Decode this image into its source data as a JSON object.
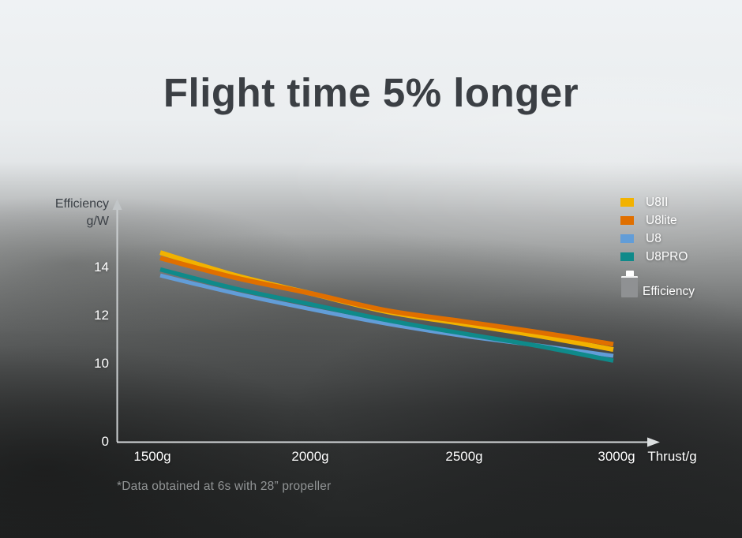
{
  "title": "Flight time 5% longer",
  "y_axis_title": [
    "Efficiency",
    "g/W"
  ],
  "battery_legend_label": "Efficiency",
  "chart_data": {
    "type": "line",
    "title": "Flight time 5% longer",
    "xlabel": "Thrust/g",
    "ylabel": "Efficiency g/W",
    "x": [
      1500,
      1750,
      2000,
      2250,
      2500,
      2750,
      3000
    ],
    "x_tick_labels": [
      "1500g",
      "2000g",
      "2500g",
      "3000g"
    ],
    "x_tick_values": [
      1500,
      2000,
      2500,
      3000
    ],
    "y_tick_labels": [
      "14",
      "12",
      "10",
      "0"
    ],
    "y_tick_values": [
      14,
      12,
      10,
      0
    ],
    "xlim": [
      1500,
      3000
    ],
    "grid": false,
    "legend_position": "top-right",
    "footnote": "*Data obtained at 6s with 28” propeller",
    "series": [
      {
        "name": "U8II",
        "color": "#F2B200",
        "values": [
          14.65,
          13.7,
          12.95,
          12.2,
          11.7,
          11.2,
          10.63
        ]
      },
      {
        "name": "U8lite",
        "color": "#E06F00",
        "values": [
          14.42,
          13.6,
          12.95,
          12.25,
          11.8,
          11.35,
          10.85
        ]
      },
      {
        "name": "U8",
        "color": "#629DD8",
        "values": [
          13.7,
          12.95,
          12.3,
          11.7,
          11.2,
          10.8,
          10.37
        ]
      },
      {
        "name": "U8PRO",
        "color": "#0F8A8A",
        "values": [
          13.95,
          13.15,
          12.5,
          11.85,
          11.3,
          10.78,
          10.17
        ]
      }
    ]
  }
}
